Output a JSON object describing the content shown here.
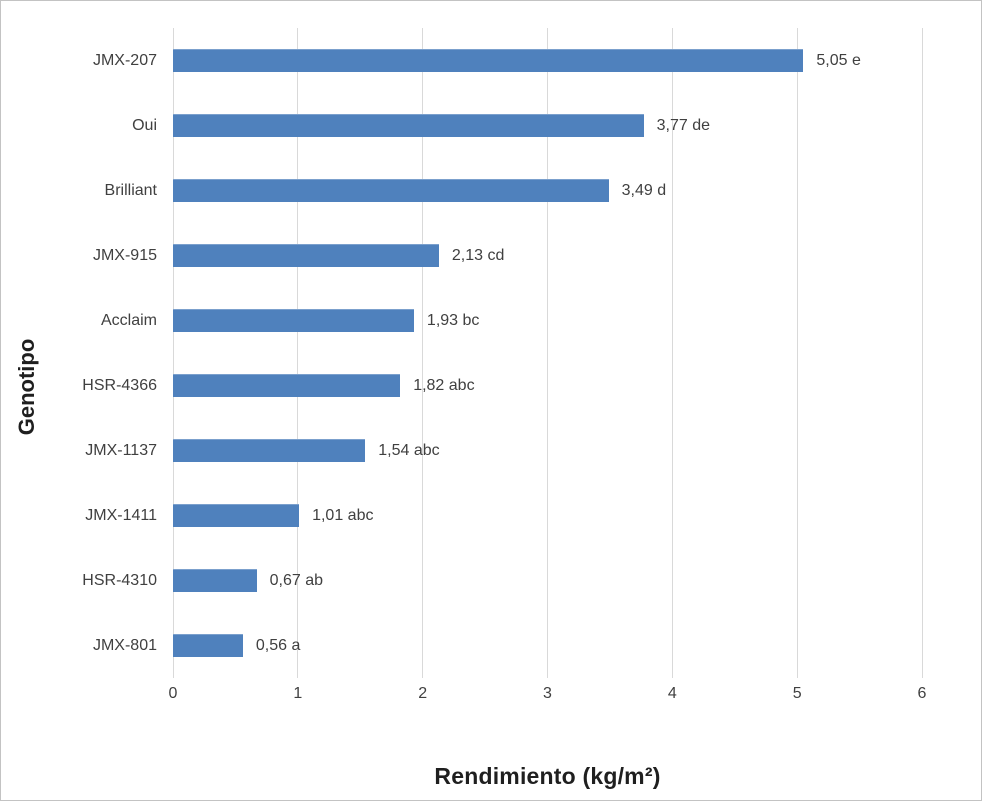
{
  "chart_data": {
    "type": "bar",
    "orientation": "horizontal",
    "title": "",
    "xlabel": "Rendimiento (kg/m²)",
    "ylabel": "Genotipo",
    "categories": [
      "JMX-207",
      "Oui",
      "Brilliant",
      "JMX-915",
      "Acclaim",
      "HSR-4366",
      "JMX-1137",
      "JMX-1411",
      "HSR-4310",
      "JMX-801"
    ],
    "values": [
      5.05,
      3.77,
      3.49,
      2.13,
      1.93,
      1.82,
      1.54,
      1.01,
      0.67,
      0.56
    ],
    "data_labels": [
      "5,05 e",
      "3,77 de",
      "3,49 d",
      "2,13 cd",
      "1,93 bc",
      "1,82 abc",
      "1,54 abc",
      "1,01 abc",
      "0,67 ab",
      "0,56 a"
    ],
    "xlim": [
      0,
      6
    ],
    "xticks": [
      0,
      1,
      2,
      3,
      4,
      5,
      6
    ],
    "grid": "vertical-gridlines-on",
    "legend": "none",
    "bar_color": "#4F81BD",
    "gridline_color": "#D9D9D9",
    "label_color": "#404040",
    "title_color": "#1f1f1f"
  }
}
